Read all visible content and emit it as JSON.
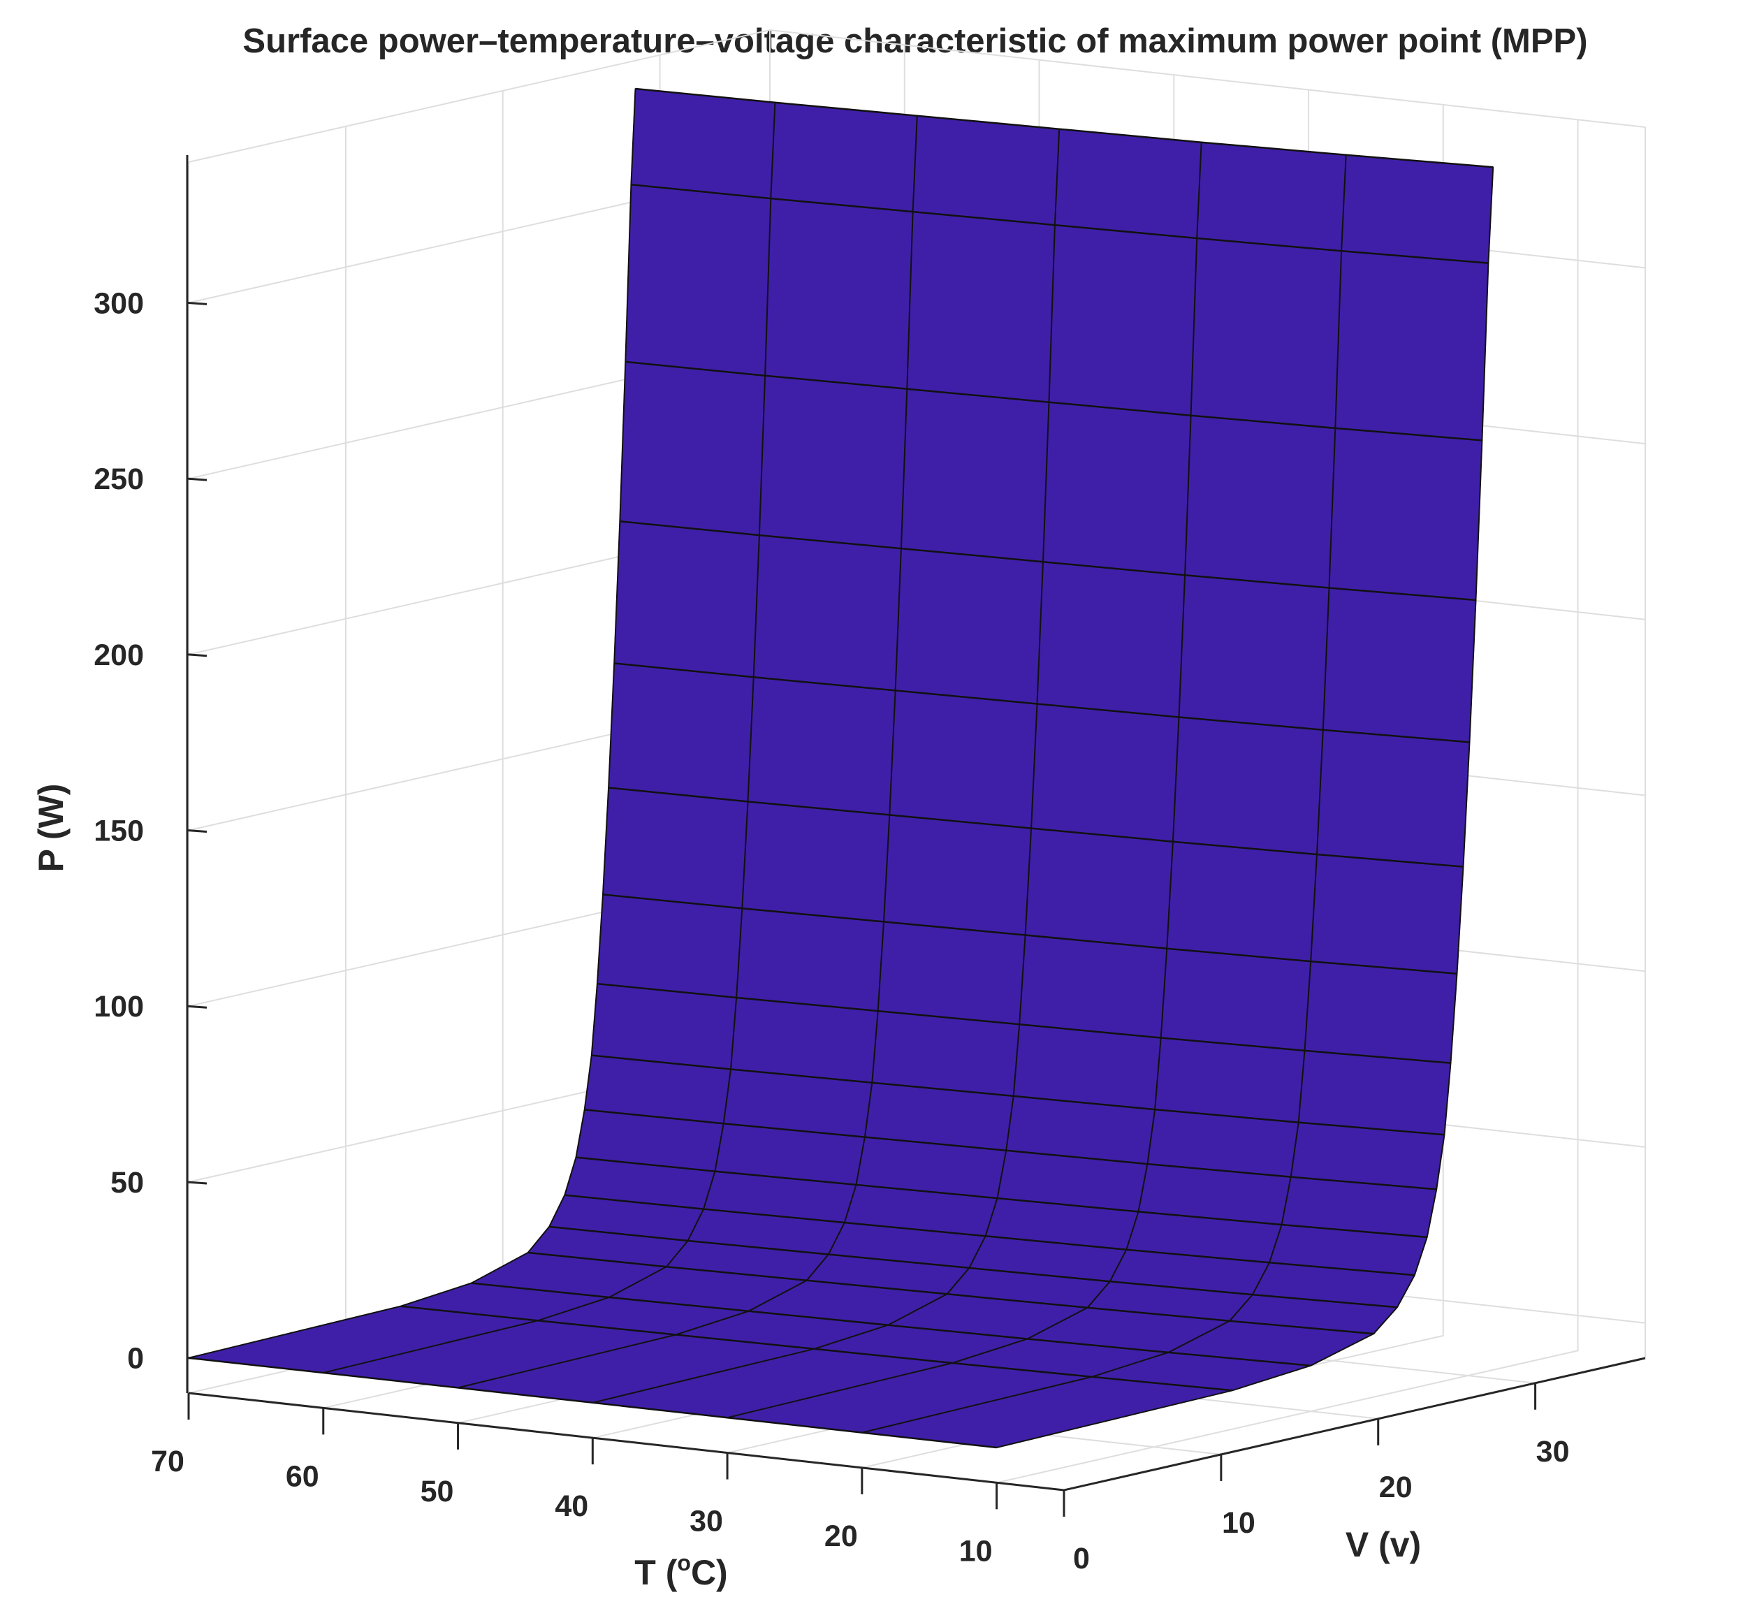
{
  "chart_data": {
    "type": "surface",
    "title": "Surface power–temperature–voltage characteristic of maximum power point (MPP)",
    "xlabel": "T (",
    "xlabel_sup": "o",
    "xlabel_end": "C)",
    "ylabel": "V (v)",
    "zlabel": "P (W)",
    "xlim": [
      70,
      5
    ],
    "ylim": [
      0,
      37
    ],
    "zlim": [
      -10,
      340
    ],
    "x_ticks": [
      70,
      60,
      50,
      40,
      30,
      20,
      10
    ],
    "y_ticks": [
      0,
      10,
      20,
      30
    ],
    "z_ticks": [
      0,
      50,
      100,
      150,
      200,
      250,
      300
    ],
    "grid": true,
    "surface_color": "#3f1fa8",
    "edge_color": "#111111",
    "temperatures": [
      70,
      60,
      50,
      40,
      30,
      20,
      10
    ],
    "voltage_at_power_p_at_t10": [
      {
        "V": 0,
        "P": 0
      },
      {
        "V": 15,
        "P": 1
      },
      {
        "V": 20,
        "P": 3
      },
      {
        "V": 24,
        "P": 8
      },
      {
        "V": 25.5,
        "P": 14
      },
      {
        "V": 26.6,
        "P": 22
      },
      {
        "V": 27.4,
        "P": 32
      },
      {
        "V": 28.0,
        "P": 45
      },
      {
        "V": 28.5,
        "P": 60
      },
      {
        "V": 28.9,
        "P": 80
      },
      {
        "V": 29.3,
        "P": 105
      },
      {
        "V": 29.7,
        "P": 135
      },
      {
        "V": 30.1,
        "P": 170
      },
      {
        "V": 30.5,
        "P": 210
      },
      {
        "V": 30.9,
        "P": 255
      },
      {
        "V": 31.3,
        "P": 305
      },
      {
        "V": 31.6,
        "P": 332
      }
    ],
    "voltage_scale_by_temperature": [
      0.9,
      0.91,
      0.925,
      0.94,
      0.955,
      0.975,
      1.0
    ]
  }
}
